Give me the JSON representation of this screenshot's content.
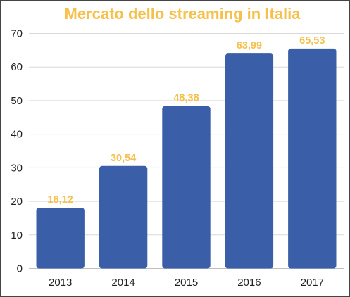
{
  "chart_data": {
    "type": "bar",
    "title": "Mercato dello streaming in Italia",
    "xlabel": "",
    "ylabel": "",
    "categories": [
      "2013",
      "2014",
      "2015",
      "2016",
      "2017"
    ],
    "values": [
      18.12,
      30.54,
      48.38,
      63.99,
      65.53
    ],
    "data_labels": [
      "18,12",
      "30,54",
      "48,38",
      "63,99",
      "65,53"
    ],
    "ylim": [
      0,
      70
    ],
    "y_ticks": [
      0,
      10,
      20,
      30,
      40,
      50,
      60,
      70
    ],
    "grid": true,
    "legend": "none",
    "colors": {
      "bar": "#3a5fa8",
      "title": "#f6c04d",
      "data_label": "#f6c04d",
      "grid": "#d9d9d9",
      "axis": "#bfbfbf"
    }
  }
}
